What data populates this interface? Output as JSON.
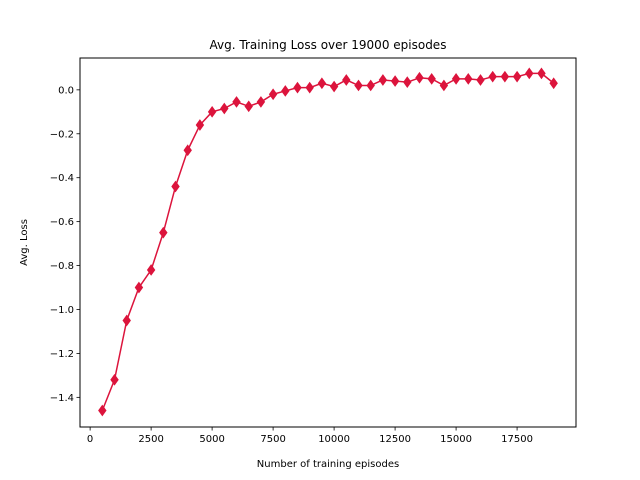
{
  "chart_data": {
    "type": "line",
    "title": "Avg. Training Loss over 19000 episodes",
    "xlabel": "Number of training episodes",
    "ylabel": "Avg. Loss",
    "xlim": [
      -415,
      19915
    ],
    "ylim": [
      -1.535,
      0.145
    ],
    "xticks": [
      0,
      2500,
      5000,
      7500,
      10000,
      12500,
      15000,
      17500
    ],
    "xtick_labels": [
      "0",
      "2500",
      "5000",
      "7500",
      "10000",
      "12500",
      "15000",
      "17500"
    ],
    "yticks": [
      -1.4,
      -1.2,
      -1.0,
      -0.8,
      -0.6,
      -0.4,
      -0.2,
      0.0
    ],
    "ytick_labels": [
      "−1.4",
      "−1.2",
      "−1.0",
      "−0.8",
      "−0.6",
      "−0.4",
      "−0.2",
      "0.0"
    ],
    "grid": false,
    "legend": "none",
    "series": [
      {
        "color": "#dc143c",
        "marker": "diamond",
        "x": [
          500,
          1000,
          1500,
          2000,
          2500,
          3000,
          3500,
          4000,
          4500,
          5000,
          5500,
          6000,
          6500,
          7000,
          7500,
          8000,
          8500,
          9000,
          9500,
          10000,
          10500,
          11000,
          11500,
          12000,
          12500,
          13000,
          13500,
          14000,
          14500,
          15000,
          15500,
          16000,
          16500,
          17000,
          17500,
          18000,
          18500,
          19000
        ],
        "y": [
          -1.46,
          -1.32,
          -1.05,
          -0.9,
          -0.82,
          -0.65,
          -0.44,
          -0.275,
          -0.16,
          -0.1,
          -0.085,
          -0.055,
          -0.075,
          -0.055,
          -0.02,
          -0.005,
          0.01,
          0.01,
          0.03,
          0.015,
          0.045,
          0.02,
          0.02,
          0.045,
          0.04,
          0.035,
          0.055,
          0.05,
          0.02,
          0.05,
          0.05,
          0.045,
          0.06,
          0.06,
          0.06,
          0.075,
          0.075,
          0.03
        ]
      }
    ]
  }
}
